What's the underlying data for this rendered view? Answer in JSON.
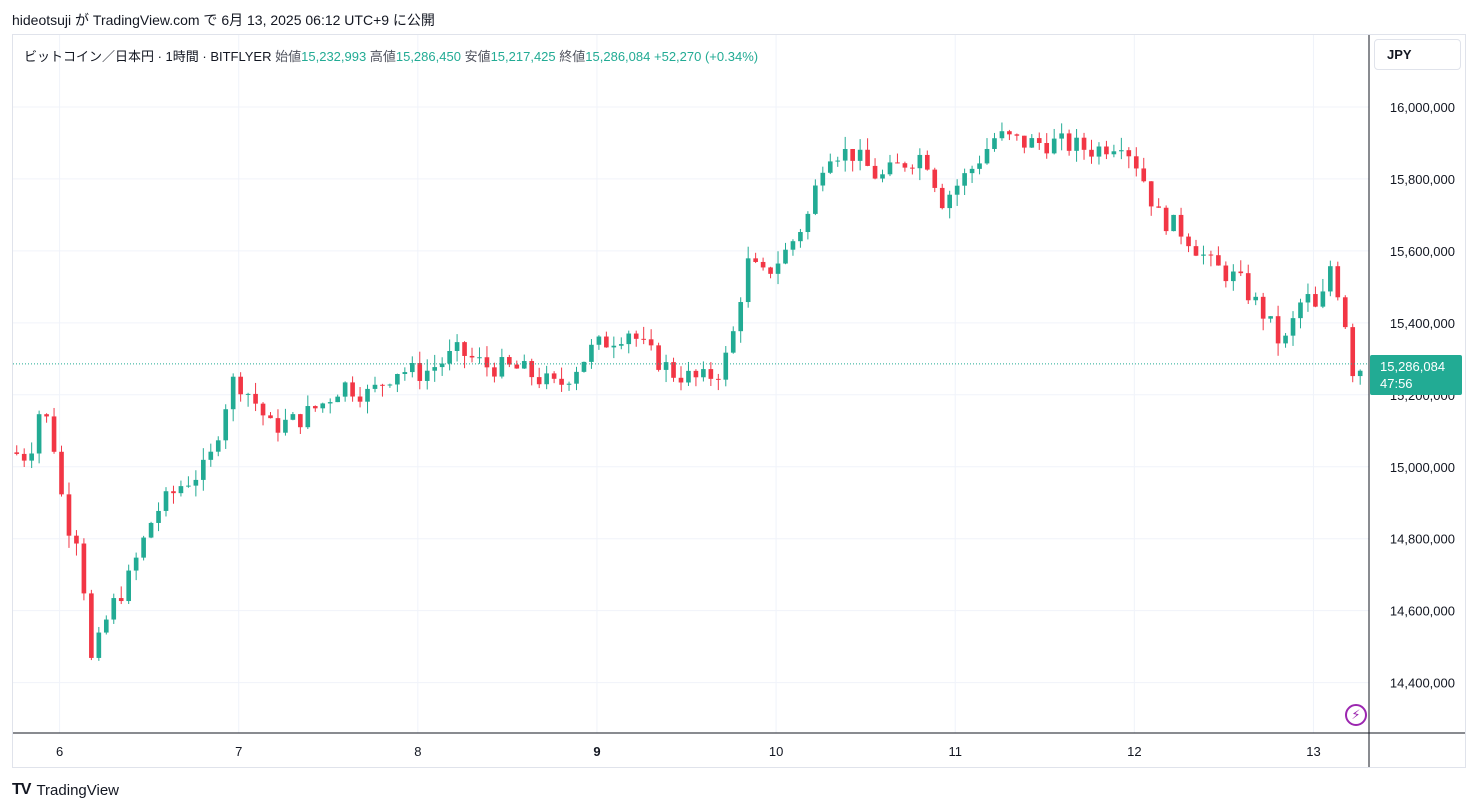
{
  "caption": "hideotsuji が TradingView.com で 6月 13, 2025 06:12 UTC+9 に公開",
  "legend": {
    "symbol": "ビットコイン／日本円 · 1時間 · BITFLYER",
    "open_label": "始値",
    "open": "15,232,993",
    "high_label": "高値",
    "high": "15,286,450",
    "low_label": "安値",
    "low": "15,217,425",
    "close_label": "終値",
    "close": "15,286,084",
    "change": "+52,270 (+0.34%)"
  },
  "currency": "JPY",
  "price_tag": {
    "price": "15,286,084",
    "countdown": "47:56"
  },
  "brand": {
    "mark": "TV",
    "name": "TradingView"
  },
  "colors": {
    "up": "#22ab94",
    "down": "#f23645",
    "grid": "#f0f3fa"
  },
  "icons": {
    "alert": "lightning-icon"
  },
  "chart_data": {
    "type": "candlestick",
    "y_ticks": [
      14400000,
      14600000,
      14800000,
      15000000,
      15200000,
      15400000,
      15600000,
      15800000,
      16000000
    ],
    "y_tick_labels": [
      "14,400,000",
      "14,600,000",
      "14,800,000",
      "15,000,000",
      "15,200,000",
      "15,400,000",
      "15,600,000",
      "15,800,000",
      "16,000,000"
    ],
    "ylim": [
      14260000,
      16200000
    ],
    "x_ticks": [
      6,
      7,
      8,
      9,
      10,
      11,
      12,
      13
    ],
    "x_tick_labels": [
      "6",
      "7",
      "8",
      "9",
      "10",
      "11",
      "12",
      "13"
    ],
    "xlim": [
      5.74,
      13.31
    ],
    "last_price": 15286084,
    "ohlc_anchors": [
      [
        5.74,
        15040000
      ],
      [
        5.85,
        15030000
      ],
      [
        5.92,
        15180000
      ],
      [
        6.0,
        15040000
      ],
      [
        6.05,
        14850000
      ],
      [
        6.13,
        14800000
      ],
      [
        6.2,
        14450000
      ],
      [
        6.3,
        14600000
      ],
      [
        6.4,
        14680000
      ],
      [
        6.55,
        14870000
      ],
      [
        6.7,
        14950000
      ],
      [
        6.85,
        15000000
      ],
      [
        6.95,
        15180000
      ],
      [
        7.0,
        15250000
      ],
      [
        7.1,
        15190000
      ],
      [
        7.2,
        15110000
      ],
      [
        7.35,
        15130000
      ],
      [
        7.5,
        15180000
      ],
      [
        7.6,
        15230000
      ],
      [
        7.75,
        15200000
      ],
      [
        7.9,
        15270000
      ],
      [
        8.05,
        15260000
      ],
      [
        8.25,
        15320000
      ],
      [
        8.4,
        15280000
      ],
      [
        8.6,
        15270000
      ],
      [
        8.8,
        15220000
      ],
      [
        9.0,
        15330000
      ],
      [
        9.2,
        15380000
      ],
      [
        9.3,
        15320000
      ],
      [
        9.45,
        15260000
      ],
      [
        9.6,
        15240000
      ],
      [
        9.72,
        15270000
      ],
      [
        9.8,
        15400000
      ],
      [
        9.85,
        15570000
      ],
      [
        9.95,
        15530000
      ],
      [
        10.08,
        15600000
      ],
      [
        10.2,
        15700000
      ],
      [
        10.3,
        15880000
      ],
      [
        10.45,
        15870000
      ],
      [
        10.6,
        15800000
      ],
      [
        10.75,
        15850000
      ],
      [
        10.85,
        15870000
      ],
      [
        10.95,
        15740000
      ],
      [
        11.1,
        15820000
      ],
      [
        11.25,
        15920000
      ],
      [
        11.4,
        15900000
      ],
      [
        11.6,
        15900000
      ],
      [
        11.8,
        15880000
      ],
      [
        11.95,
        15910000
      ],
      [
        12.05,
        15830000
      ],
      [
        12.15,
        15700000
      ],
      [
        12.3,
        15650000
      ],
      [
        12.45,
        15560000
      ],
      [
        12.6,
        15520000
      ],
      [
        12.75,
        15420000
      ],
      [
        12.85,
        15330000
      ],
      [
        12.97,
        15480000
      ],
      [
        13.05,
        15420000
      ],
      [
        13.12,
        15570000
      ],
      [
        13.2,
        15400000
      ],
      [
        13.25,
        15240000
      ],
      [
        13.29,
        15286084
      ]
    ]
  }
}
